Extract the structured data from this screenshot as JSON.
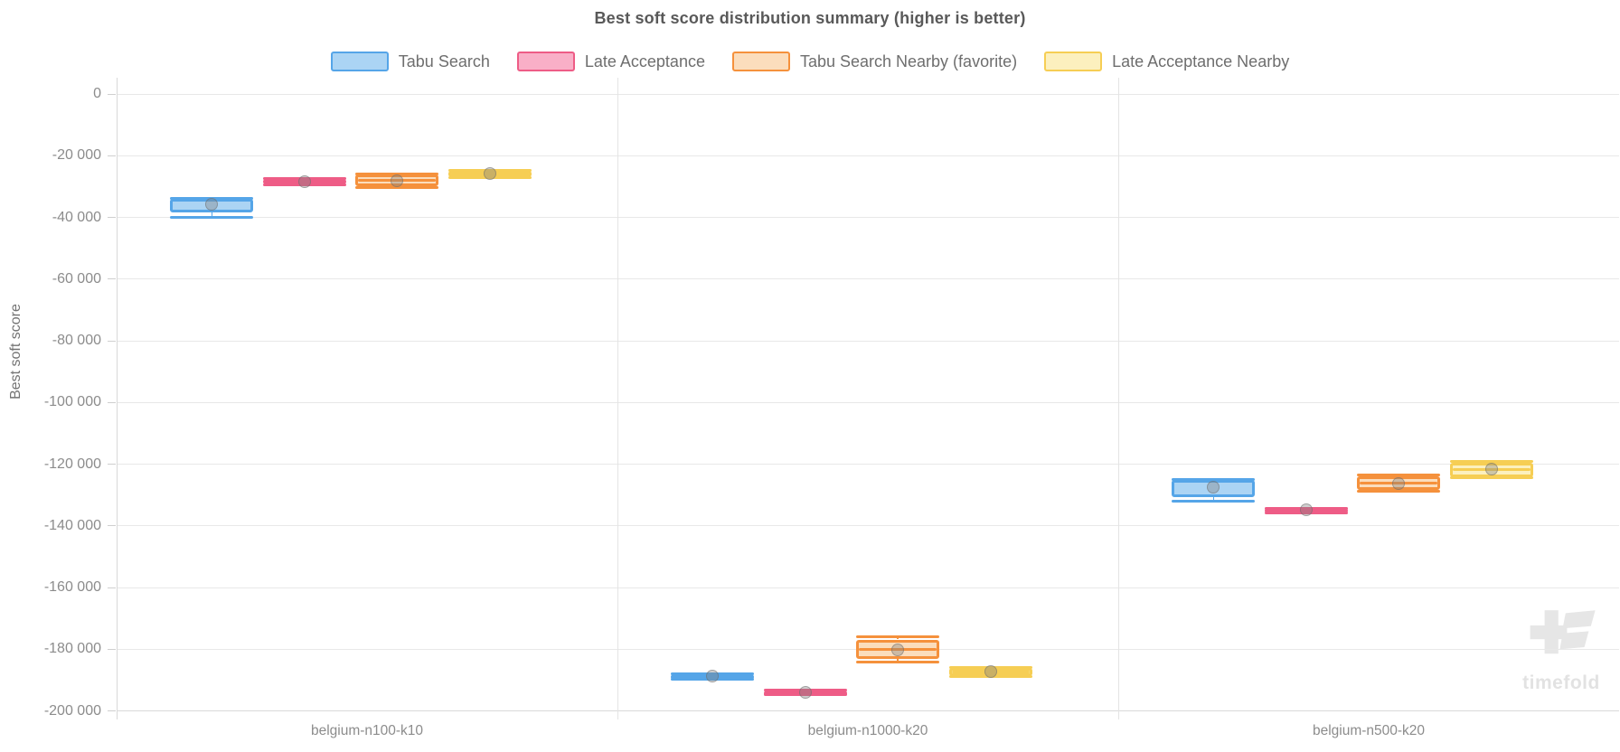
{
  "chart_data": {
    "type": "boxplot",
    "title": "Best soft score distribution summary (higher is better)",
    "ylabel": "Best soft score",
    "ylim": [
      -200000,
      0
    ],
    "ytick_step": 20000,
    "yticks": [
      0,
      -20000,
      -40000,
      -60000,
      -80000,
      -100000,
      -120000,
      -140000,
      -160000,
      -180000,
      -200000
    ],
    "yticklabels": [
      "0",
      "-20 000",
      "-40 000",
      "-60 000",
      "-80 000",
      "-100 000",
      "-120 000",
      "-140 000",
      "-160 000",
      "-180 000",
      "-200 000"
    ],
    "categories": [
      "belgium-n100-k10",
      "belgium-n1000-k20",
      "belgium-n500-k20"
    ],
    "legend_position": "top-center",
    "grid": true,
    "series": [
      {
        "name": "Tabu Search",
        "border_color": "#55a5e8",
        "fill_color": "#abd4f4",
        "boxes": [
          {
            "min": -40100,
            "q1": -38400,
            "median": -34400,
            "q3": -33900,
            "max": -33800,
            "mean": -35600
          },
          {
            "min": -189700,
            "q1": -189500,
            "median": -188700,
            "q3": -188000,
            "max": -187900,
            "mean": -188700
          },
          {
            "min": -132100,
            "q1": -130800,
            "median": -125600,
            "q3": -125000,
            "max": -124900,
            "mean": -127400
          }
        ]
      },
      {
        "name": "Late Acceptance",
        "border_color": "#ee5c86",
        "fill_color": "#f9afc7",
        "boxes": [
          {
            "min": -29400,
            "q1": -29300,
            "median": -28200,
            "q3": -27400,
            "max": -27300,
            "mean": -28500
          },
          {
            "min": -194800,
            "q1": -194700,
            "median": -194000,
            "q3": -193300,
            "max": -193200,
            "mean": -194000
          },
          {
            "min": -135700,
            "q1": -135600,
            "median": -134900,
            "q3": -134300,
            "max": -134200,
            "mean": -134900
          }
        ]
      },
      {
        "name": "Tabu Search Nearby (favorite)",
        "border_color": "#f5913c",
        "fill_color": "#fbddbc",
        "boxes": [
          {
            "min": -30400,
            "q1": -30000,
            "median": -28000,
            "q3": -26200,
            "max": -25800,
            "mean": -28000
          },
          {
            "min": -184200,
            "q1": -183200,
            "median": -180000,
            "q3": -176800,
            "max": -175800,
            "mean": -180100
          },
          {
            "min": -128700,
            "q1": -128400,
            "median": -126200,
            "q3": -123800,
            "max": -123500,
            "mean": -126200
          }
        ]
      },
      {
        "name": "Late Acceptance Nearby",
        "border_color": "#f6ce54",
        "fill_color": "#fcf0be",
        "boxes": [
          {
            "min": -27100,
            "q1": -26900,
            "median": -25900,
            "q3": -25000,
            "max": -24800,
            "mean": -25900
          },
          {
            "min": -188900,
            "q1": -188600,
            "median": -187300,
            "q3": -186100,
            "max": -185800,
            "mean": -187300
          },
          {
            "min": -124500,
            "q1": -124200,
            "median": -121700,
            "q3": -119500,
            "max": -119100,
            "mean": -121500
          }
        ]
      }
    ],
    "watermark": "timefold"
  }
}
